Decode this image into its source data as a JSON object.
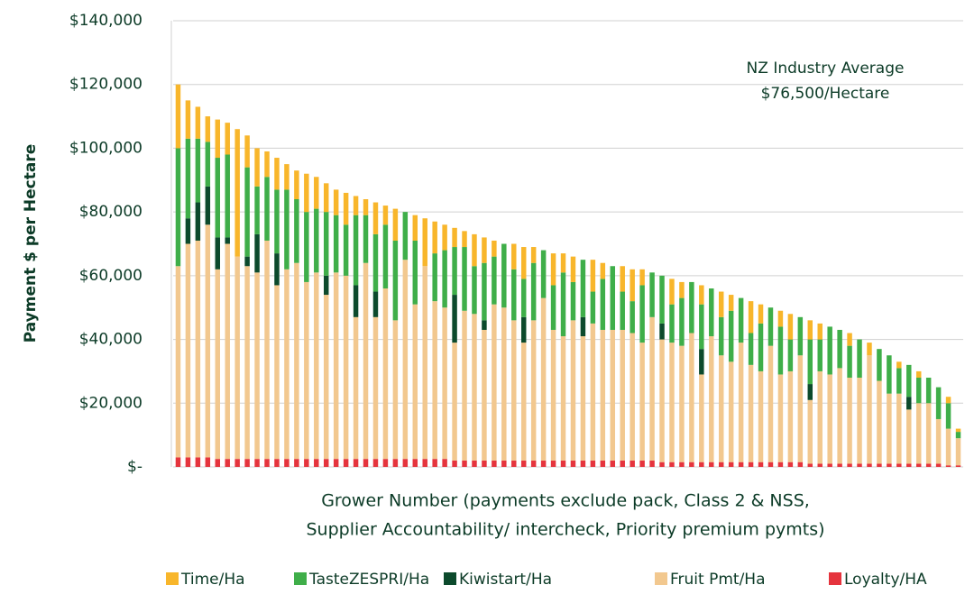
{
  "chart_data": {
    "type": "stacked_bar",
    "y_label": "Payment $ per Hectare",
    "x_label": [
      "Grower Number (payments exclude pack, Class 2 & NSS,",
      "Supplier Accountability/ intercheck, Priority premium pymts)"
    ],
    "annotation": [
      "NZ Industry Average",
      "$76,500/Hectare"
    ],
    "ylim": [
      0,
      140000
    ],
    "yticks": [
      {
        "value": 0,
        "label": "$-"
      },
      {
        "value": 20000,
        "label": "$20,000"
      },
      {
        "value": 40000,
        "label": "$40,000"
      },
      {
        "value": 60000,
        "label": "$60,000"
      },
      {
        "value": 80000,
        "label": "$80,000"
      },
      {
        "value": 100000,
        "label": "$100,000"
      },
      {
        "value": 120000,
        "label": "$120,000"
      },
      {
        "value": 140000,
        "label": "$140,000"
      }
    ],
    "grid": true,
    "categories": [
      null,
      null,
      null,
      null,
      null,
      null,
      null,
      null,
      null,
      null,
      null,
      null,
      null,
      null,
      null,
      null,
      null,
      null,
      null,
      null,
      null,
      null,
      null,
      null,
      null,
      null,
      null,
      null,
      null,
      null,
      null,
      null,
      null,
      null,
      null,
      null,
      null,
      null,
      null,
      null,
      null,
      null,
      null,
      null,
      null,
      null,
      null,
      null,
      null,
      null,
      null,
      null,
      null,
      null,
      null,
      null,
      null,
      null,
      null,
      null,
      null,
      null,
      null,
      null,
      null,
      null,
      null,
      null,
      null,
      null,
      null,
      null,
      null,
      null,
      null,
      null,
      null,
      null,
      null,
      null
    ],
    "series": [
      {
        "name": "Time/Ha",
        "color": "#f8b62b",
        "values": [
          20000,
          12000,
          10000,
          8000,
          12000,
          10000,
          40000,
          10000,
          12000,
          8000,
          10000,
          8000,
          9000,
          12000,
          10000,
          9000,
          8000,
          10000,
          6000,
          5000,
          10000,
          6000,
          10000,
          0,
          8000,
          15000,
          10000,
          8000,
          6000,
          5000,
          10000,
          8000,
          5000,
          0,
          8000,
          10000,
          5000,
          0,
          10000,
          6000,
          8000,
          0,
          10000,
          5000,
          0,
          8000,
          10000,
          5000,
          0,
          0,
          8000,
          5000,
          0,
          6000,
          0,
          8000,
          5000,
          0,
          10000,
          6000,
          0,
          5000,
          8000,
          0,
          6000,
          5000,
          0,
          0,
          4000,
          0,
          4000,
          0,
          0,
          2000,
          0,
          2000,
          0,
          0,
          2000,
          1000
        ]
      },
      {
        "name": "TasteZESPRI/Ha",
        "color": "#3fae49",
        "values": [
          37000,
          25000,
          20000,
          14000,
          25000,
          26000,
          0,
          28000,
          15000,
          20000,
          20000,
          25000,
          20000,
          22000,
          20000,
          20000,
          18000,
          16000,
          22000,
          15000,
          18000,
          20000,
          25000,
          15000,
          20000,
          0,
          15000,
          18000,
          15000,
          20000,
          15000,
          18000,
          15000,
          20000,
          16000,
          12000,
          18000,
          15000,
          14000,
          20000,
          12000,
          18000,
          10000,
          16000,
          20000,
          12000,
          10000,
          18000,
          14000,
          15000,
          12000,
          15000,
          16000,
          14000,
          15000,
          12000,
          16000,
          14000,
          10000,
          15000,
          12000,
          15000,
          10000,
          12000,
          14000,
          10000,
          15000,
          12000,
          10000,
          12000,
          0,
          10000,
          12000,
          8000,
          10000,
          8000,
          8000,
          10000,
          8000,
          2000
        ]
      },
      {
        "name": "Kiwistart/Ha",
        "color": "#0c4a2c",
        "values": [
          0,
          8000,
          12000,
          12000,
          10000,
          2000,
          0,
          3000,
          12000,
          0,
          10000,
          0,
          0,
          0,
          0,
          6000,
          0,
          0,
          10000,
          0,
          8000,
          0,
          0,
          0,
          0,
          0,
          0,
          0,
          15000,
          0,
          0,
          3000,
          0,
          0,
          0,
          8000,
          0,
          0,
          0,
          0,
          0,
          6000,
          0,
          0,
          0,
          0,
          0,
          0,
          0,
          5000,
          0,
          0,
          0,
          8000,
          0,
          0,
          0,
          0,
          0,
          0,
          0,
          0,
          0,
          0,
          5000,
          0,
          0,
          0,
          0,
          0,
          0,
          0,
          0,
          0,
          4000,
          0,
          0,
          0,
          0,
          0
        ]
      },
      {
        "name": "Fruit Pmt/Ha",
        "color": "#f2c88f",
        "values": [
          60000,
          67000,
          68000,
          73000,
          59500,
          67500,
          63500,
          60500,
          58500,
          68500,
          54500,
          59500,
          61500,
          55500,
          58500,
          51500,
          58500,
          57500,
          44500,
          61500,
          44500,
          53500,
          43500,
          62500,
          48500,
          60500,
          49500,
          47500,
          37000,
          47000,
          46000,
          41000,
          49000,
          48000,
          44000,
          37000,
          44000,
          51000,
          41000,
          39000,
          44000,
          39000,
          43000,
          41000,
          41000,
          41000,
          40000,
          37000,
          45000,
          38500,
          37500,
          36500,
          40500,
          27500,
          39500,
          33500,
          31500,
          37500,
          30500,
          28500,
          36500,
          27500,
          28500,
          33500,
          20000,
          29000,
          28000,
          30000,
          27000,
          27000,
          34000,
          26000,
          22000,
          22000,
          17000,
          19000,
          19000,
          14000,
          11500,
          8500
        ]
      },
      {
        "name": "Loyalty/HA",
        "color": "#e5343d",
        "values": [
          3000,
          3000,
          3000,
          3000,
          2500,
          2500,
          2500,
          2500,
          2500,
          2500,
          2500,
          2500,
          2500,
          2500,
          2500,
          2500,
          2500,
          2500,
          2500,
          2500,
          2500,
          2500,
          2500,
          2500,
          2500,
          2500,
          2500,
          2500,
          2000,
          2000,
          2000,
          2000,
          2000,
          2000,
          2000,
          2000,
          2000,
          2000,
          2000,
          2000,
          2000,
          2000,
          2000,
          2000,
          2000,
          2000,
          2000,
          2000,
          2000,
          1500,
          1500,
          1500,
          1500,
          1500,
          1500,
          1500,
          1500,
          1500,
          1500,
          1500,
          1500,
          1500,
          1500,
          1500,
          1000,
          1000,
          1000,
          1000,
          1000,
          1000,
          1000,
          1000,
          1000,
          1000,
          1000,
          1000,
          1000,
          1000,
          500,
          500
        ]
      }
    ]
  }
}
